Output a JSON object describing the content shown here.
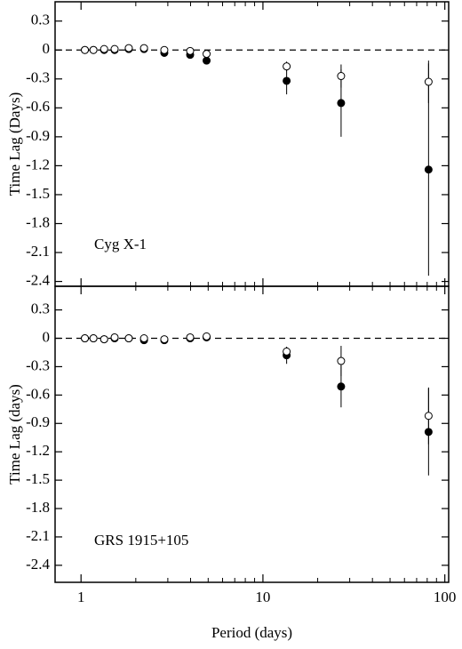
{
  "chart_data": [
    {
      "type": "errorbar",
      "ylabel": "Time Lag (Days)",
      "annotation": "Cyg X-1",
      "xscale": "log",
      "xlim": [
        0.72,
        105
      ],
      "xticks": [
        1,
        10,
        100
      ],
      "xminorticks": [
        2,
        3,
        4,
        5,
        6,
        7,
        8,
        9,
        20,
        30,
        40,
        50,
        60,
        70,
        80,
        90
      ],
      "ylim": [
        -2.45,
        0.5
      ],
      "yticks": [
        0.3,
        0,
        -0.3,
        -0.6,
        -0.9,
        -1.2,
        -1.5,
        -1.8,
        -2.1,
        -2.4
      ],
      "reference_line": 0,
      "x": [
        1.05,
        1.17,
        1.34,
        1.53,
        1.83,
        2.22,
        2.87,
        3.98,
        4.9,
        13.5,
        26.9,
        81.4
      ],
      "series": [
        {
          "color": "#000000",
          "marker": "filled",
          "values": [
            0,
            0,
            0,
            0,
            0.01,
            0.01,
            -0.03,
            -0.05,
            -0.11,
            -0.32,
            -0.55,
            -1.24
          ],
          "errors": [
            0,
            0,
            0,
            0,
            0,
            0,
            0.01,
            0.01,
            0.04,
            0.14,
            0.35,
            1.1
          ]
        },
        {
          "color": "#000000",
          "marker": "open",
          "values": [
            0,
            0,
            0.01,
            0.01,
            0.02,
            0.02,
            0,
            -0.01,
            -0.04,
            -0.17,
            -0.27,
            -0.33
          ],
          "errors": [
            0,
            0,
            0,
            0,
            0,
            0,
            0,
            0,
            0.01,
            0.05,
            0.12,
            0.22
          ]
        }
      ]
    },
    {
      "type": "errorbar",
      "ylabel": "Time Lag (days)",
      "annotation": "GRS 1915+105",
      "xlabel": "Period (days)",
      "xscale": "log",
      "xlim": [
        0.72,
        105
      ],
      "xticks": [
        1,
        10,
        100
      ],
      "xminorticks": [
        2,
        3,
        4,
        5,
        6,
        7,
        8,
        9,
        20,
        30,
        40,
        50,
        60,
        70,
        80,
        90
      ],
      "ylim": [
        -2.58,
        0.55
      ],
      "yticks": [
        0.3,
        0,
        -0.3,
        -0.6,
        -0.9,
        -1.2,
        -1.5,
        -1.8,
        -2.1,
        -2.4
      ],
      "reference_line": 0,
      "x": [
        1.05,
        1.17,
        1.34,
        1.53,
        1.83,
        2.22,
        2.87,
        3.98,
        4.9,
        13.5,
        26.9,
        81.4
      ],
      "series": [
        {
          "color": "#000000",
          "marker": "filled",
          "values": [
            0,
            0,
            -0.01,
            0,
            0,
            -0.02,
            -0.02,
            0,
            0.01,
            -0.18,
            -0.51,
            -0.99
          ],
          "errors": [
            0,
            0,
            0,
            0,
            0,
            0,
            0,
            0,
            0.01,
            0.09,
            0.22,
            0.46
          ]
        },
        {
          "color": "#000000",
          "marker": "open",
          "values": [
            0,
            0,
            -0.01,
            0.01,
            0,
            0,
            -0.01,
            0.01,
            0.02,
            -0.14,
            -0.24,
            -0.82
          ],
          "errors": [
            0,
            0,
            0,
            0,
            0,
            0,
            0,
            0,
            0.01,
            0.05,
            0.16,
            0.3
          ]
        }
      ]
    }
  ]
}
